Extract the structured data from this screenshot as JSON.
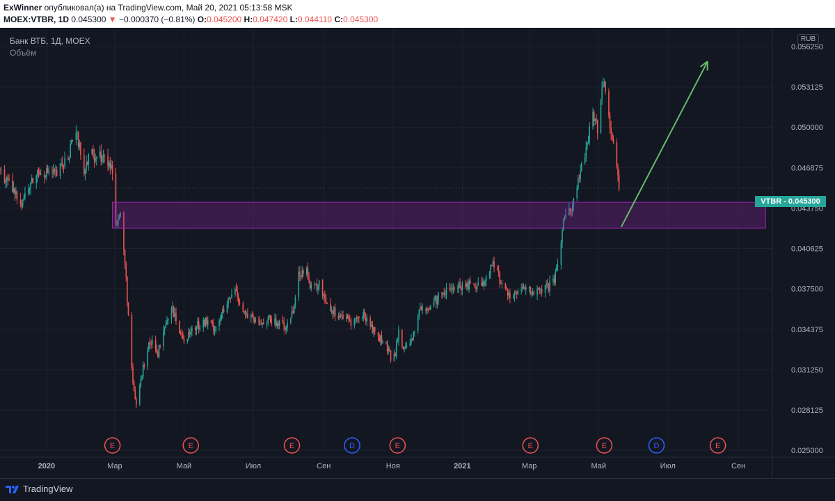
{
  "header": {
    "author": "ExWinner",
    "published_text": "опубликовал(а) на TradingView.com, Май 20, 2021 05:13:58 MSK",
    "symbol": "MOEX:VTBR, 1D",
    "last": "0.045300",
    "change_arrow": "▼",
    "change": "−0.000370 (−0.81%)",
    "open_label": "O:",
    "open": "0.045200",
    "high_label": "H:",
    "high": "0.047420",
    "low_label": "L:",
    "low": "0.044110",
    "close_label": "C:",
    "close": "0.045300"
  },
  "legend": {
    "title": "Банк ВТБ, 1Д, MOEX",
    "volume": "Объём"
  },
  "currency": "RUB",
  "price_tag": "VTBR - 0.045300",
  "footer": {
    "brand": "TradingView"
  },
  "colors": {
    "background": "#131722",
    "up": "#26a69a",
    "down": "#ef5350",
    "zone": "#9c27b0",
    "arrow": "#66bb6a",
    "earnings": "#ef5350",
    "dividend": "#2962ff"
  },
  "chart_data": {
    "type": "candlestick",
    "y_axis": {
      "range": [
        0.0249,
        0.0577
      ],
      "ticks": [
        "0.025000",
        "0.028125",
        "0.031250",
        "0.034375",
        "0.037500",
        "0.040625",
        "0.043750",
        "0.046875",
        "0.050000",
        "0.053125",
        "0.056250"
      ]
    },
    "x_axis": {
      "range": [
        "2019-11-21",
        "2021-10-01"
      ],
      "ticks": [
        {
          "date": "2020-01-01",
          "label": "2020",
          "bold": true
        },
        {
          "date": "2020-03-01",
          "label": "Мар"
        },
        {
          "date": "2020-05-01",
          "label": "Май"
        },
        {
          "date": "2020-07-01",
          "label": "Июл"
        },
        {
          "date": "2020-09-01",
          "label": "Сен"
        },
        {
          "date": "2020-11-01",
          "label": "Ноя"
        },
        {
          "date": "2021-01-01",
          "label": "2021",
          "bold": true
        },
        {
          "date": "2021-03-01",
          "label": "Мар"
        },
        {
          "date": "2021-05-01",
          "label": "Май"
        },
        {
          "date": "2021-07-01",
          "label": "Июл"
        },
        {
          "date": "2021-09-01",
          "label": "Сен"
        }
      ]
    },
    "price_path": [
      [
        "2019-11-21",
        0.0467
      ],
      [
        "2019-12-01",
        0.0452
      ],
      [
        "2019-12-10",
        0.0443
      ],
      [
        "2019-12-25",
        0.0467
      ],
      [
        "2020-01-10",
        0.0464
      ],
      [
        "2020-01-20",
        0.0478
      ],
      [
        "2020-01-27",
        0.0495
      ],
      [
        "2020-02-03",
        0.0468
      ],
      [
        "2020-02-10",
        0.048
      ],
      [
        "2020-02-20",
        0.0477
      ],
      [
        "2020-02-28",
        0.0468
      ],
      [
        "2020-03-02",
        0.0428
      ],
      [
        "2020-03-06",
        0.0432
      ],
      [
        "2020-03-10",
        0.0395
      ],
      [
        "2020-03-13",
        0.0355
      ],
      [
        "2020-03-17",
        0.03
      ],
      [
        "2020-03-20",
        0.0285
      ],
      [
        "2020-03-24",
        0.0305
      ],
      [
        "2020-03-31",
        0.0335
      ],
      [
        "2020-04-05",
        0.033
      ],
      [
        "2020-04-08",
        0.0325
      ],
      [
        "2020-04-15",
        0.0345
      ],
      [
        "2020-04-20",
        0.036
      ],
      [
        "2020-04-30",
        0.0336
      ],
      [
        "2020-05-10",
        0.0345
      ],
      [
        "2020-05-20",
        0.035
      ],
      [
        "2020-05-28",
        0.0345
      ],
      [
        "2020-06-05",
        0.0358
      ],
      [
        "2020-06-15",
        0.0375
      ],
      [
        "2020-06-24",
        0.0355
      ],
      [
        "2020-07-06",
        0.0348
      ],
      [
        "2020-07-14",
        0.0352
      ],
      [
        "2020-07-22",
        0.0348
      ],
      [
        "2020-07-30",
        0.0345
      ],
      [
        "2020-08-05",
        0.036
      ],
      [
        "2020-08-10",
        0.0385
      ],
      [
        "2020-08-17",
        0.0395
      ],
      [
        "2020-08-20",
        0.0375
      ],
      [
        "2020-08-28",
        0.0378
      ],
      [
        "2020-09-07",
        0.036
      ],
      [
        "2020-09-15",
        0.0355
      ],
      [
        "2020-09-25",
        0.035
      ],
      [
        "2020-10-07",
        0.0355
      ],
      [
        "2020-10-17",
        0.034
      ],
      [
        "2020-10-25",
        0.0333
      ],
      [
        "2020-10-31",
        0.032
      ],
      [
        "2020-11-03",
        0.0325
      ],
      [
        "2020-11-06",
        0.034
      ],
      [
        "2020-11-11",
        0.033
      ],
      [
        "2020-11-15",
        0.0326
      ],
      [
        "2020-11-20",
        0.0345
      ],
      [
        "2020-11-25",
        0.036
      ],
      [
        "2020-11-30",
        0.0357
      ],
      [
        "2020-12-10",
        0.0368
      ],
      [
        "2020-12-20",
        0.0375
      ],
      [
        "2020-12-31",
        0.0378
      ],
      [
        "2021-01-10",
        0.0377
      ],
      [
        "2021-01-20",
        0.038
      ],
      [
        "2021-01-27",
        0.0393
      ],
      [
        "2021-02-01",
        0.0388
      ],
      [
        "2021-02-06",
        0.0375
      ],
      [
        "2021-02-15",
        0.037
      ],
      [
        "2021-02-25",
        0.0375
      ],
      [
        "2021-03-07",
        0.0372
      ],
      [
        "2021-03-15",
        0.0375
      ],
      [
        "2021-03-23",
        0.038
      ],
      [
        "2021-03-26",
        0.0395
      ],
      [
        "2021-03-30",
        0.042
      ],
      [
        "2021-04-03",
        0.0435
      ],
      [
        "2021-04-08",
        0.044
      ],
      [
        "2021-04-12",
        0.0455
      ],
      [
        "2021-04-16",
        0.047
      ],
      [
        "2021-04-20",
        0.048
      ],
      [
        "2021-04-23",
        0.0497
      ],
      [
        "2021-04-27",
        0.051
      ],
      [
        "2021-04-30",
        0.05
      ],
      [
        "2021-05-04",
        0.0535
      ],
      [
        "2021-05-07",
        0.0527
      ],
      [
        "2021-05-10",
        0.0505
      ],
      [
        "2021-05-13",
        0.0495
      ],
      [
        "2021-05-16",
        0.048
      ],
      [
        "2021-05-19",
        0.0453
      ]
    ],
    "zone": {
      "from": "2020-02-28",
      "to": "2021-09-25",
      "low": 0.0422,
      "high": 0.0442
    },
    "arrow": {
      "from": [
        "2021-05-21",
        0.0423
      ],
      "to": [
        "2021-08-05",
        0.0551
      ]
    },
    "events": [
      {
        "type": "E",
        "date": "2020-02-28"
      },
      {
        "type": "E",
        "date": "2020-05-07"
      },
      {
        "type": "E",
        "date": "2020-08-04"
      },
      {
        "type": "D",
        "date": "2020-09-26"
      },
      {
        "type": "E",
        "date": "2020-11-05"
      },
      {
        "type": "E",
        "date": "2021-03-02"
      },
      {
        "type": "E",
        "date": "2021-05-06"
      },
      {
        "type": "D",
        "date": "2021-06-21"
      },
      {
        "type": "E",
        "date": "2021-08-14"
      }
    ]
  }
}
